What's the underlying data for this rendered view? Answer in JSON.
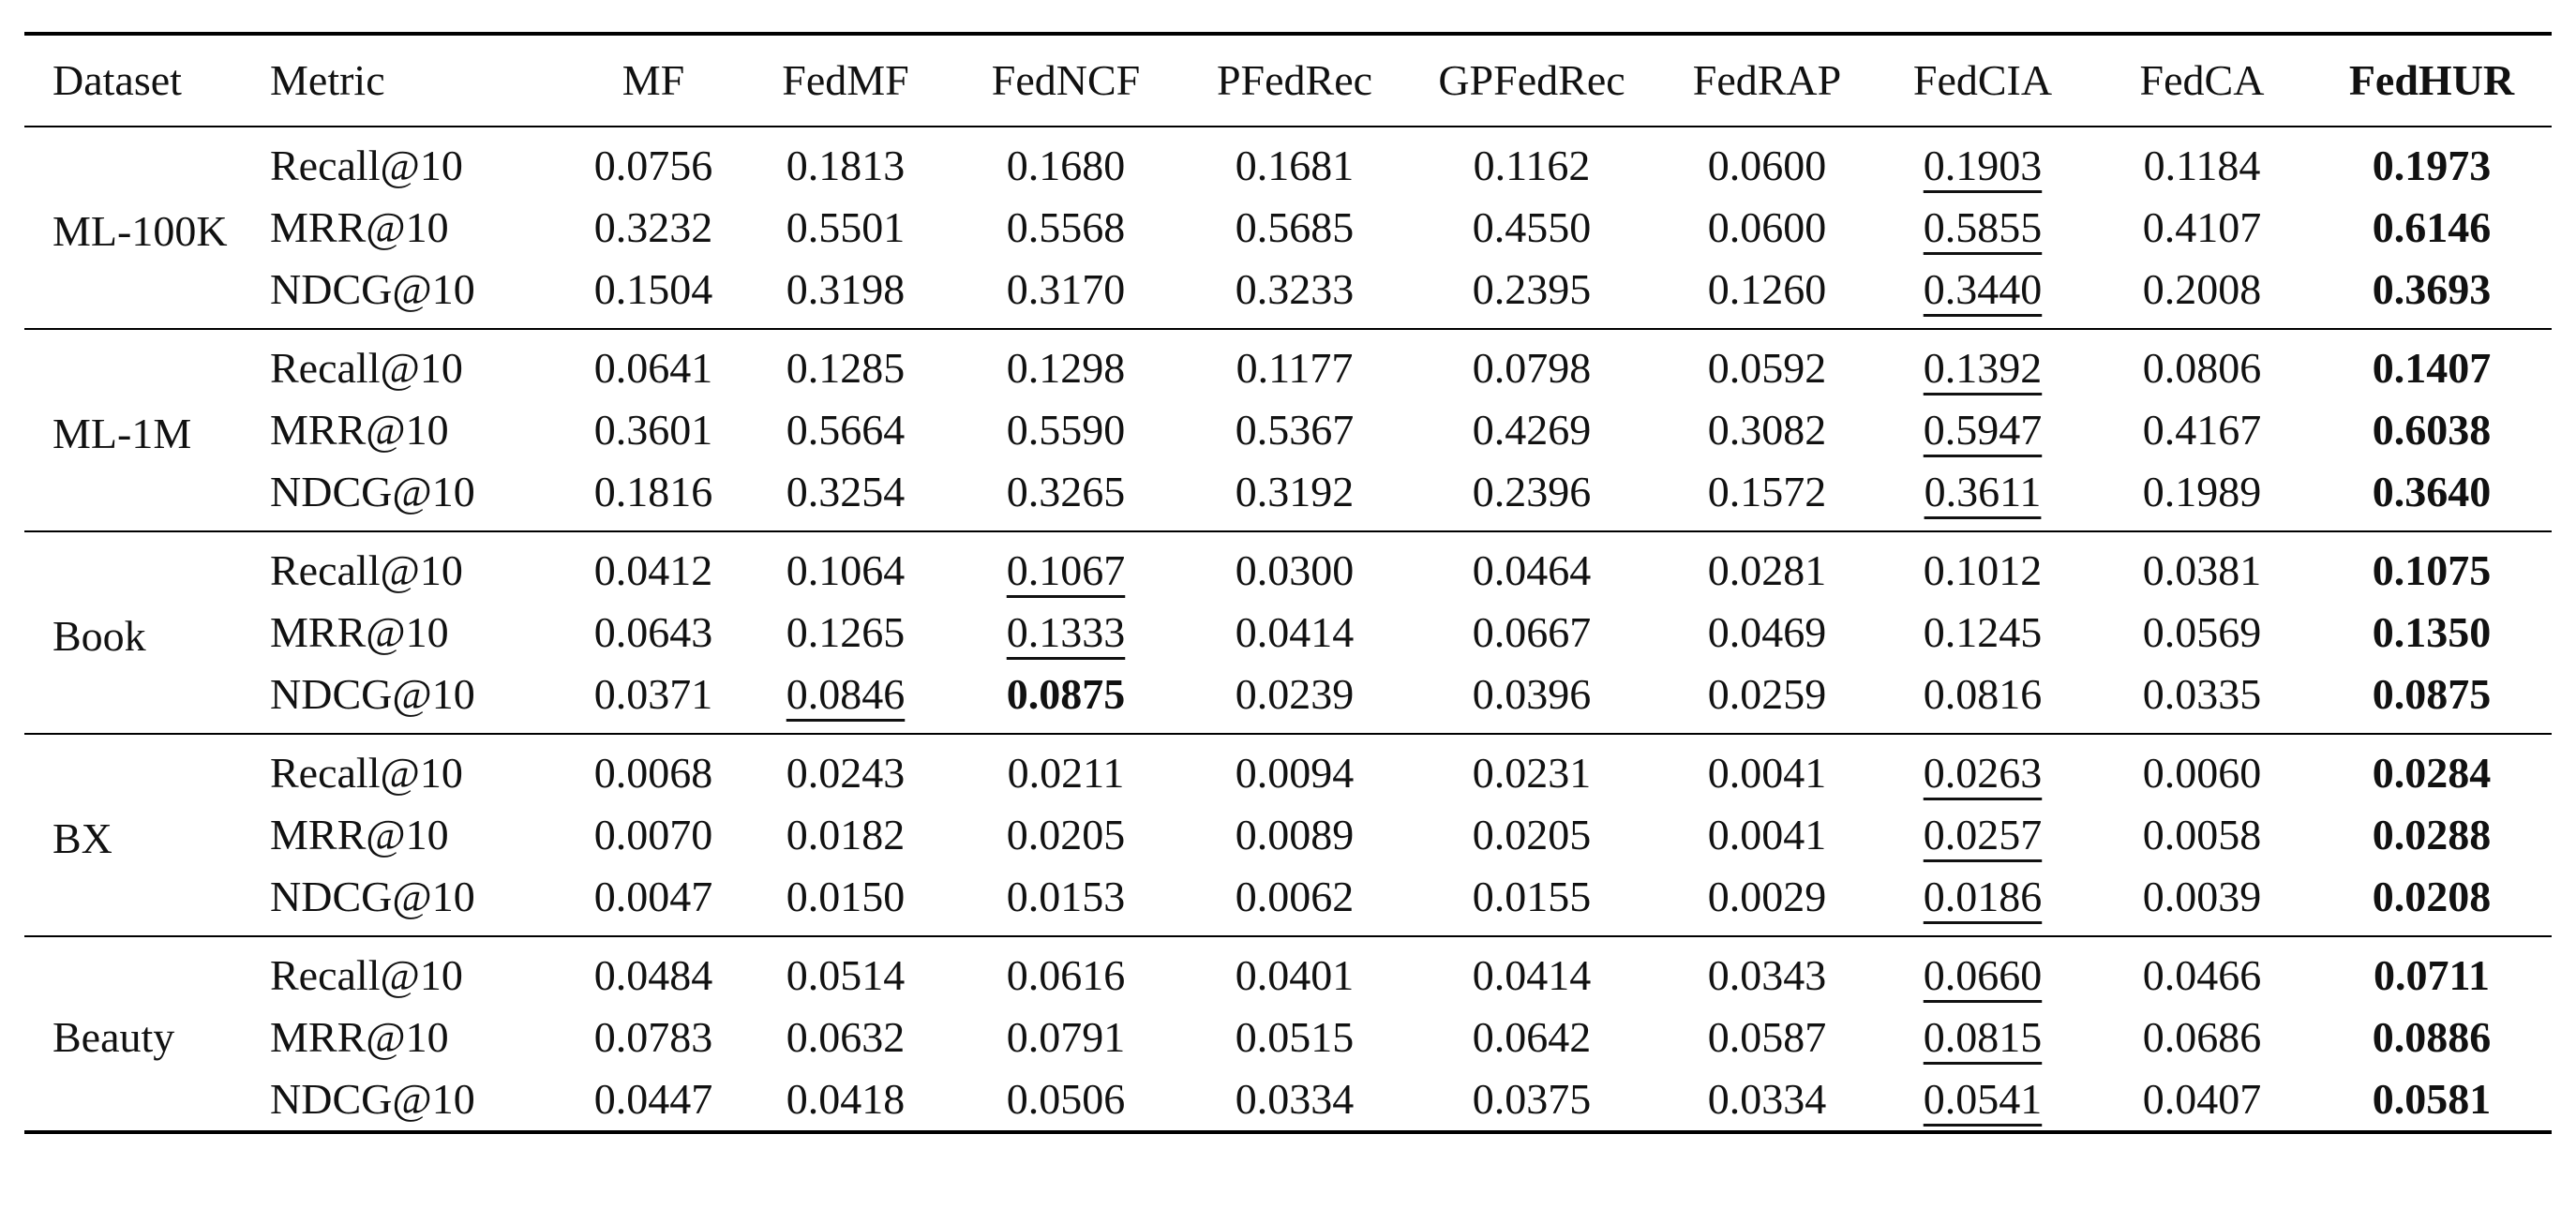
{
  "table": {
    "headers": [
      "Dataset",
      "Metric",
      "MF",
      "FedMF",
      "FedNCF",
      "PFedRec",
      "GPFedRec",
      "FedRAP",
      "FedCIA",
      "FedCA",
      "FedHUR"
    ],
    "header_bold_index": 10,
    "groups": [
      {
        "dataset": "ML-100K",
        "rows": [
          {
            "metric": "Recall@10",
            "values": [
              "0.0756",
              "0.1813",
              "0.1680",
              "0.1681",
              "0.1162",
              "0.0600",
              "0.1903",
              "0.1184",
              "0.1973"
            ],
            "bold": [
              8
            ],
            "underline": [
              6
            ]
          },
          {
            "metric": "MRR@10",
            "values": [
              "0.3232",
              "0.5501",
              "0.5568",
              "0.5685",
              "0.4550",
              "0.0600",
              "0.5855",
              "0.4107",
              "0.6146"
            ],
            "bold": [
              8
            ],
            "underline": [
              6
            ]
          },
          {
            "metric": "NDCG@10",
            "values": [
              "0.1504",
              "0.3198",
              "0.3170",
              "0.3233",
              "0.2395",
              "0.1260",
              "0.3440",
              "0.2008",
              "0.3693"
            ],
            "bold": [
              8
            ],
            "underline": [
              6
            ]
          }
        ]
      },
      {
        "dataset": "ML-1M",
        "rows": [
          {
            "metric": "Recall@10",
            "values": [
              "0.0641",
              "0.1285",
              "0.1298",
              "0.1177",
              "0.0798",
              "0.0592",
              "0.1392",
              "0.0806",
              "0.1407"
            ],
            "bold": [
              8
            ],
            "underline": [
              6
            ]
          },
          {
            "metric": "MRR@10",
            "values": [
              "0.3601",
              "0.5664",
              "0.5590",
              "0.5367",
              "0.4269",
              "0.3082",
              "0.5947",
              "0.4167",
              "0.6038"
            ],
            "bold": [
              8
            ],
            "underline": [
              6
            ]
          },
          {
            "metric": "NDCG@10",
            "values": [
              "0.1816",
              "0.3254",
              "0.3265",
              "0.3192",
              "0.2396",
              "0.1572",
              "0.3611",
              "0.1989",
              "0.3640"
            ],
            "bold": [
              8
            ],
            "underline": [
              6
            ]
          }
        ]
      },
      {
        "dataset": "Book",
        "rows": [
          {
            "metric": "Recall@10",
            "values": [
              "0.0412",
              "0.1064",
              "0.1067",
              "0.0300",
              "0.0464",
              "0.0281",
              "0.1012",
              "0.0381",
              "0.1075"
            ],
            "bold": [
              8
            ],
            "underline": [
              2
            ]
          },
          {
            "metric": "MRR@10",
            "values": [
              "0.0643",
              "0.1265",
              "0.1333",
              "0.0414",
              "0.0667",
              "0.0469",
              "0.1245",
              "0.0569",
              "0.1350"
            ],
            "bold": [
              8
            ],
            "underline": [
              2
            ]
          },
          {
            "metric": "NDCG@10",
            "values": [
              "0.0371",
              "0.0846",
              "0.0875",
              "0.0239",
              "0.0396",
              "0.0259",
              "0.0816",
              "0.0335",
              "0.0875"
            ],
            "bold": [
              2,
              8
            ],
            "underline": [
              1
            ]
          }
        ]
      },
      {
        "dataset": "BX",
        "rows": [
          {
            "metric": "Recall@10",
            "values": [
              "0.0068",
              "0.0243",
              "0.0211",
              "0.0094",
              "0.0231",
              "0.0041",
              "0.0263",
              "0.0060",
              "0.0284"
            ],
            "bold": [
              8
            ],
            "underline": [
              6
            ]
          },
          {
            "metric": "MRR@10",
            "values": [
              "0.0070",
              "0.0182",
              "0.0205",
              "0.0089",
              "0.0205",
              "0.0041",
              "0.0257",
              "0.0058",
              "0.0288"
            ],
            "bold": [
              8
            ],
            "underline": [
              6
            ]
          },
          {
            "metric": "NDCG@10",
            "values": [
              "0.0047",
              "0.0150",
              "0.0153",
              "0.0062",
              "0.0155",
              "0.0029",
              "0.0186",
              "0.0039",
              "0.0208"
            ],
            "bold": [
              8
            ],
            "underline": [
              6
            ]
          }
        ]
      },
      {
        "dataset": "Beauty",
        "rows": [
          {
            "metric": "Recall@10",
            "values": [
              "0.0484",
              "0.0514",
              "0.0616",
              "0.0401",
              "0.0414",
              "0.0343",
              "0.0660",
              "0.0466",
              "0.0711"
            ],
            "bold": [
              8
            ],
            "underline": [
              6
            ]
          },
          {
            "metric": "MRR@10",
            "values": [
              "0.0783",
              "0.0632",
              "0.0791",
              "0.0515",
              "0.0642",
              "0.0587",
              "0.0815",
              "0.0686",
              "0.0886"
            ],
            "bold": [
              8
            ],
            "underline": [
              6
            ]
          },
          {
            "metric": "NDCG@10",
            "values": [
              "0.0447",
              "0.0418",
              "0.0506",
              "0.0334",
              "0.0375",
              "0.0334",
              "0.0541",
              "0.0407",
              "0.0581"
            ],
            "bold": [
              8
            ],
            "underline": [
              6
            ]
          }
        ]
      }
    ]
  }
}
